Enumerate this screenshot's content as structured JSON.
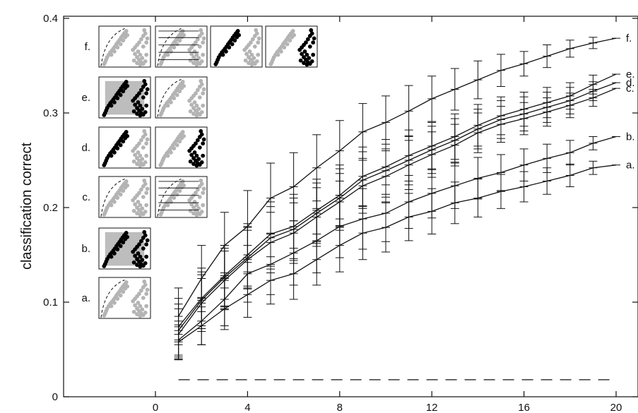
{
  "chart_data": {
    "type": "line",
    "title": "",
    "xlabel": "",
    "ylabel": "classification correct",
    "xlim": [
      -3.5,
      21
    ],
    "ylim": [
      0,
      0.4
    ],
    "xticks": [
      0,
      4,
      8,
      12,
      16,
      20
    ],
    "xtick_labels": [
      "0",
      "4",
      "8",
      "12",
      "16",
      "20"
    ],
    "yticks": [
      0,
      0.1,
      0.2,
      0.3,
      0.4
    ],
    "ytick_labels": [
      "0",
      "0.1",
      "0.2",
      "0.3",
      "0.4"
    ],
    "grid": false,
    "x": [
      1,
      2,
      3,
      4,
      5,
      6,
      7,
      8,
      9,
      10,
      11,
      12,
      13,
      14,
      15,
      16,
      17,
      18,
      19,
      20
    ],
    "series": [
      {
        "name": "f.",
        "values": [
          0.085,
          0.125,
          0.16,
          0.18,
          0.21,
          0.222,
          0.242,
          0.26,
          0.28,
          0.29,
          0.302,
          0.315,
          0.325,
          0.335,
          0.345,
          0.352,
          0.36,
          0.368,
          0.374,
          0.379
        ],
        "err": [
          0.03,
          0.035,
          0.035,
          0.038,
          0.037,
          0.036,
          0.035,
          0.032,
          0.03,
          0.028,
          0.027,
          0.024,
          0.022,
          0.02,
          0.017,
          0.013,
          0.012,
          0.009,
          0.006,
          0.0
        ]
      },
      {
        "name": "e.",
        "values": [
          0.074,
          0.104,
          0.128,
          0.15,
          0.172,
          0.18,
          0.197,
          0.213,
          0.233,
          0.243,
          0.255,
          0.265,
          0.275,
          0.287,
          0.297,
          0.304,
          0.311,
          0.318,
          0.33,
          0.341
        ],
        "err": [
          0.03,
          0.032,
          0.032,
          0.033,
          0.034,
          0.034,
          0.033,
          0.032,
          0.031,
          0.029,
          0.027,
          0.025,
          0.024,
          0.022,
          0.02,
          0.018,
          0.016,
          0.014,
          0.01,
          0.0
        ]
      },
      {
        "name": "d.",
        "values": [
          0.07,
          0.102,
          0.126,
          0.147,
          0.168,
          0.177,
          0.194,
          0.21,
          0.229,
          0.239,
          0.25,
          0.261,
          0.271,
          0.283,
          0.293,
          0.299,
          0.306,
          0.313,
          0.323,
          0.332
        ],
        "err": [
          0.028,
          0.03,
          0.031,
          0.032,
          0.033,
          0.033,
          0.032,
          0.031,
          0.03,
          0.028,
          0.026,
          0.025,
          0.023,
          0.021,
          0.02,
          0.018,
          0.016,
          0.014,
          0.01,
          0.0
        ]
      },
      {
        "name": "c.",
        "values": [
          0.066,
          0.099,
          0.123,
          0.145,
          0.163,
          0.173,
          0.19,
          0.206,
          0.223,
          0.233,
          0.245,
          0.256,
          0.266,
          0.279,
          0.288,
          0.294,
          0.301,
          0.308,
          0.316,
          0.326
        ],
        "err": [
          0.027,
          0.03,
          0.031,
          0.031,
          0.032,
          0.032,
          0.031,
          0.03,
          0.029,
          0.027,
          0.026,
          0.024,
          0.022,
          0.021,
          0.019,
          0.017,
          0.015,
          0.013,
          0.009,
          0.0
        ]
      },
      {
        "name": "b.",
        "values": [
          0.06,
          0.08,
          0.103,
          0.13,
          0.14,
          0.152,
          0.165,
          0.18,
          0.188,
          0.194,
          0.206,
          0.215,
          0.223,
          0.231,
          0.237,
          0.245,
          0.252,
          0.258,
          0.268,
          0.275
        ],
        "err": [
          0.02,
          0.025,
          0.028,
          0.03,
          0.032,
          0.034,
          0.034,
          0.033,
          0.032,
          0.03,
          0.028,
          0.026,
          0.024,
          0.022,
          0.019,
          0.017,
          0.015,
          0.013,
          0.007,
          0.0
        ]
      },
      {
        "name": "a.",
        "values": [
          0.058,
          0.075,
          0.093,
          0.108,
          0.123,
          0.13,
          0.145,
          0.16,
          0.173,
          0.179,
          0.19,
          0.196,
          0.205,
          0.21,
          0.217,
          0.222,
          0.228,
          0.234,
          0.242,
          0.245
        ],
        "err": [
          0.018,
          0.02,
          0.022,
          0.024,
          0.025,
          0.027,
          0.027,
          0.028,
          0.028,
          0.026,
          0.025,
          0.024,
          0.022,
          0.02,
          0.018,
          0.016,
          0.014,
          0.012,
          0.007,
          0.0
        ]
      }
    ],
    "baseline": {
      "value": 0.018,
      "x_range": [
        1,
        20
      ],
      "style": "dashed"
    },
    "insets": [
      {
        "label": "f.",
        "panels": [
          "arc-left",
          "arc-lines",
          "left-black",
          "right-black"
        ]
      },
      {
        "label": "e.",
        "panels": [
          "both-black-shaded",
          "arc-left"
        ]
      },
      {
        "label": "d.",
        "panels": [
          "left-black",
          "right-black"
        ]
      },
      {
        "label": "c.",
        "panels": [
          "arc-left",
          "arc-lines"
        ]
      },
      {
        "label": "b.",
        "panels": [
          "both-black-shaded"
        ]
      },
      {
        "label": "a.",
        "panels": [
          "arc-left"
        ]
      }
    ],
    "colors": {
      "line": "#111111",
      "gray_dot": "#b4b4b4",
      "black_dot": "#000000",
      "shade": "#bdbdbd",
      "frame": "#111111"
    }
  }
}
